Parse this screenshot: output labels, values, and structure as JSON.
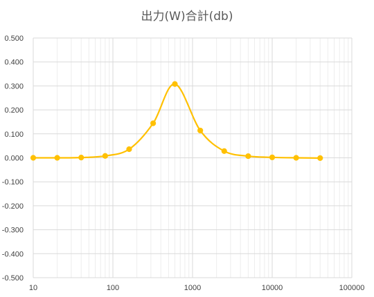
{
  "chart_data": {
    "type": "scatter",
    "title": "出力(W)合計(db)",
    "xlabel": "",
    "ylabel": "",
    "x_scale": "log",
    "xlim": [
      10,
      100000
    ],
    "ylim": [
      -0.5,
      0.5
    ],
    "x_tick_labels": [
      "10",
      "100",
      "1000",
      "10000",
      "100000"
    ],
    "y_tick_labels": [
      "0.500",
      "0.400",
      "0.300",
      "0.200",
      "0.100",
      "0.000",
      "-0.100",
      "-0.200",
      "-0.300",
      "-0.400",
      "-0.500"
    ],
    "grid": true,
    "legend": "none",
    "line_color": "#FFC000",
    "series": [
      {
        "x": [
          10,
          20,
          40,
          80,
          160,
          320,
          600,
          1250,
          2500,
          5000,
          10000,
          20000,
          40000
        ],
        "y": [
          0.0,
          0.0,
          0.001,
          0.008,
          0.036,
          0.144,
          0.308,
          0.114,
          0.028,
          0.007,
          0.002,
          0.0,
          -0.001
        ]
      }
    ]
  }
}
